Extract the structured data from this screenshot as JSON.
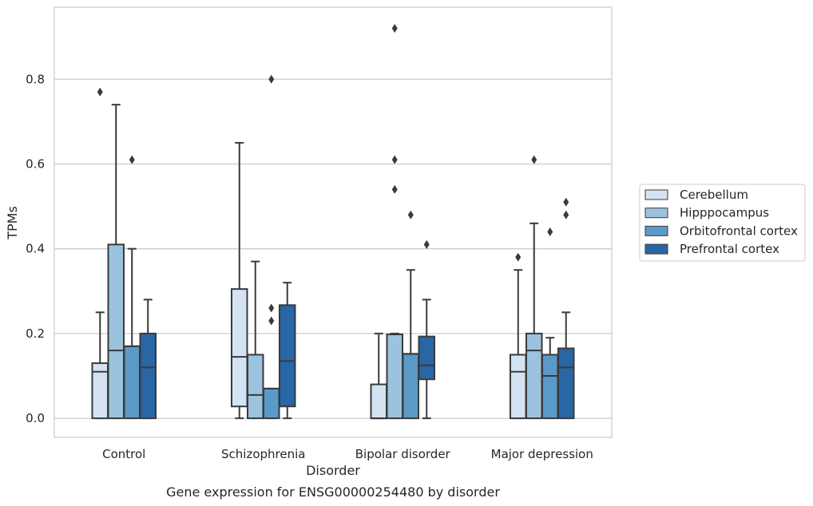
{
  "chart_data": {
    "type": "boxplot",
    "title": "Gene expression for ENSG00000254480 by disorder",
    "xlabel": "Disorder",
    "ylabel": "TPMs",
    "ylim": [
      -0.045,
      0.97
    ],
    "yticks": [
      "0.0",
      "0.2",
      "0.4",
      "0.6",
      "0.8"
    ],
    "grid": "horizontal",
    "legend_position": "right",
    "categories": [
      "Control",
      "Schizophrenia",
      "Bipolar disorder",
      "Major depression"
    ],
    "series": [
      {
        "name": "Cerebellum",
        "color": "#d4e3f2",
        "boxes": [
          {
            "whislo": 0.0,
            "q1": 0.0,
            "med": 0.11,
            "q3": 0.13,
            "whishi": 0.25,
            "fliers": [
              0.77
            ]
          },
          {
            "whislo": 0.0,
            "q1": 0.028,
            "med": 0.145,
            "q3": 0.305,
            "whishi": 0.65,
            "fliers": []
          },
          {
            "whislo": 0.0,
            "q1": 0.0,
            "med": 0.0,
            "q3": 0.08,
            "whishi": 0.2,
            "fliers": []
          },
          {
            "whislo": 0.0,
            "q1": 0.0,
            "med": 0.11,
            "q3": 0.15,
            "whishi": 0.35,
            "fliers": [
              0.38
            ]
          }
        ]
      },
      {
        "name": "Hipppocampus",
        "color": "#9bc3dd",
        "boxes": [
          {
            "whislo": 0.0,
            "q1": 0.0,
            "med": 0.16,
            "q3": 0.41,
            "whishi": 0.74,
            "fliers": []
          },
          {
            "whislo": 0.0,
            "q1": 0.0,
            "med": 0.055,
            "q3": 0.15,
            "whishi": 0.37,
            "fliers": []
          },
          {
            "whislo": 0.0,
            "q1": 0.0,
            "med": 0.198,
            "q3": 0.198,
            "whishi": 0.2,
            "fliers": [
              0.92,
              0.61,
              0.54
            ]
          },
          {
            "whislo": 0.0,
            "q1": 0.0,
            "med": 0.16,
            "q3": 0.2,
            "whishi": 0.46,
            "fliers": [
              0.61
            ]
          }
        ]
      },
      {
        "name": "Orbitofrontal cortex",
        "color": "#5a9ac8",
        "boxes": [
          {
            "whislo": 0.0,
            "q1": 0.0,
            "med": 0.17,
            "q3": 0.17,
            "whishi": 0.4,
            "fliers": [
              0.61
            ]
          },
          {
            "whislo": 0.0,
            "q1": 0.0,
            "med": 0.07,
            "q3": 0.07,
            "whishi": 0.07,
            "fliers": [
              0.8,
              0.26,
              0.23
            ]
          },
          {
            "whislo": 0.0,
            "q1": 0.0,
            "med": 0.152,
            "q3": 0.152,
            "whishi": 0.35,
            "fliers": [
              0.48
            ]
          },
          {
            "whislo": 0.0,
            "q1": 0.0,
            "med": 0.1,
            "q3": 0.15,
            "whishi": 0.19,
            "fliers": [
              0.44
            ]
          }
        ]
      },
      {
        "name": "Prefrontal cortex",
        "color": "#2966a5",
        "boxes": [
          {
            "whislo": 0.0,
            "q1": 0.0,
            "med": 0.12,
            "q3": 0.2,
            "whishi": 0.28,
            "fliers": []
          },
          {
            "whislo": 0.0,
            "q1": 0.028,
            "med": 0.135,
            "q3": 0.267,
            "whishi": 0.32,
            "fliers": []
          },
          {
            "whislo": 0.0,
            "q1": 0.092,
            "med": 0.125,
            "q3": 0.193,
            "whishi": 0.28,
            "fliers": [
              0.41
            ]
          },
          {
            "whislo": 0.0,
            "q1": 0.0,
            "med": 0.12,
            "q3": 0.165,
            "whishi": 0.25,
            "fliers": [
              0.48,
              0.51
            ]
          }
        ]
      }
    ]
  }
}
